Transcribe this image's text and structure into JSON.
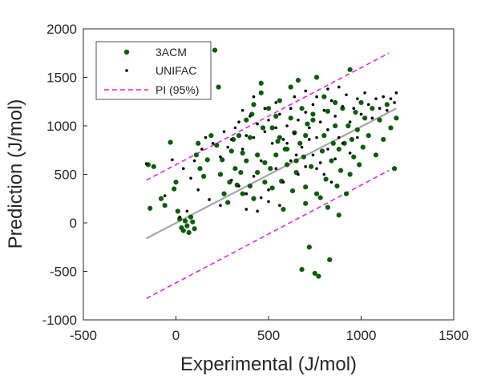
{
  "chart_data": {
    "type": "scatter",
    "title": "",
    "xlabel": "Experimental (J/mol)",
    "ylabel": "Prediction (J/mol)",
    "xlim": [
      -500,
      1500
    ],
    "ylim": [
      -1000,
      2000
    ],
    "xticks": [
      -500,
      0,
      500,
      1000,
      1500
    ],
    "yticks": [
      -1000,
      -500,
      0,
      500,
      1000,
      1500,
      2000
    ],
    "xtick_labels": [
      "-500",
      "0",
      "500",
      "1000",
      "1500"
    ],
    "ytick_labels": [
      "-1000",
      "-500",
      "0",
      "500",
      "1000",
      "1500",
      "2000"
    ],
    "grid": false,
    "legend_position": "top-left",
    "series": [
      {
        "name": "3ACM",
        "marker": "dot-large",
        "color": "#0a5c0a",
        "points": [
          [
            -150,
            600
          ],
          [
            -140,
            150
          ],
          [
            -120,
            580
          ],
          [
            -80,
            250
          ],
          [
            -60,
            180
          ],
          [
            -30,
            830
          ],
          [
            -10,
            350
          ],
          [
            0,
            420
          ],
          [
            10,
            120
          ],
          [
            20,
            40
          ],
          [
            30,
            -50
          ],
          [
            40,
            -80
          ],
          [
            50,
            20
          ],
          [
            60,
            -30
          ],
          [
            70,
            -100
          ],
          [
            80,
            60
          ],
          [
            90,
            10
          ],
          [
            100,
            -60
          ],
          [
            110,
            700
          ],
          [
            120,
            820
          ],
          [
            130,
            560
          ],
          [
            150,
            480
          ],
          [
            170,
            650
          ],
          [
            190,
            900
          ],
          [
            210,
            1780
          ],
          [
            220,
            800
          ],
          [
            230,
            1400
          ],
          [
            240,
            500
          ],
          [
            250,
            650
          ],
          [
            260,
            300
          ],
          [
            280,
            210
          ],
          [
            300,
            740
          ],
          [
            310,
            860
          ],
          [
            330,
            390
          ],
          [
            350,
            520
          ],
          [
            360,
            300
          ],
          [
            380,
            640
          ],
          [
            400,
            880
          ],
          [
            410,
            1120
          ],
          [
            420,
            250
          ],
          [
            440,
            700
          ],
          [
            460,
            1440
          ],
          [
            470,
            980
          ],
          [
            480,
            420
          ],
          [
            500,
            1180
          ],
          [
            510,
            560
          ],
          [
            520,
            360
          ],
          [
            540,
            700
          ],
          [
            550,
            840
          ],
          [
            560,
            1260
          ],
          [
            570,
            430
          ],
          [
            580,
            140
          ],
          [
            590,
            760
          ],
          [
            600,
            600
          ],
          [
            620,
            1080
          ],
          [
            630,
            330
          ],
          [
            640,
            930
          ],
          [
            650,
            520
          ],
          [
            660,
            1470
          ],
          [
            670,
            820
          ],
          [
            680,
            -480
          ],
          [
            690,
            680
          ],
          [
            700,
            370
          ],
          [
            710,
            1020
          ],
          [
            720,
            -250
          ],
          [
            730,
            580
          ],
          [
            740,
            1060
          ],
          [
            750,
            -520
          ],
          [
            760,
            1500
          ],
          [
            770,
            -550
          ],
          [
            780,
            260
          ],
          [
            790,
            740
          ],
          [
            800,
            900
          ],
          [
            810,
            450
          ],
          [
            820,
            1150
          ],
          [
            830,
            -380
          ],
          [
            840,
            640
          ],
          [
            850,
            820
          ],
          [
            860,
            1000
          ],
          [
            870,
            380
          ],
          [
            880,
            760
          ],
          [
            890,
            540
          ],
          [
            900,
            1180
          ],
          [
            910,
            820
          ],
          [
            920,
            300
          ],
          [
            930,
            1000
          ],
          [
            940,
            1580
          ],
          [
            950,
            860
          ],
          [
            960,
            680
          ],
          [
            970,
            1140
          ],
          [
            980,
            960
          ],
          [
            990,
            600
          ],
          [
            1000,
            1240
          ],
          [
            1010,
            780
          ],
          [
            1020,
            1080
          ],
          [
            1040,
            900
          ],
          [
            1060,
            1180
          ],
          [
            1080,
            700
          ],
          [
            1100,
            1060
          ],
          [
            1120,
            860
          ],
          [
            1140,
            1220
          ],
          [
            1160,
            980
          ],
          [
            1180,
            560
          ],
          [
            1190,
            1080
          ],
          [
            700,
            900
          ],
          [
            650,
            640
          ],
          [
            600,
            760
          ],
          [
            560,
            880
          ],
          [
            520,
            980
          ],
          [
            480,
            620
          ],
          [
            440,
            520
          ],
          [
            400,
            380
          ],
          [
            360,
            720
          ],
          [
            320,
            560
          ],
          [
            290,
            420
          ],
          [
            700,
            200
          ],
          [
            760,
            300
          ],
          [
            820,
            160
          ],
          [
            880,
            80
          ],
          [
            940,
            500
          ],
          [
            340,
            900
          ],
          [
            380,
            1060
          ],
          [
            420,
            1220
          ],
          [
            460,
            1340
          ],
          [
            540,
            1100
          ],
          [
            620,
            1400
          ],
          [
            680,
            1180
          ],
          [
            740,
            1120
          ],
          [
            800,
            1300
          ],
          [
            860,
            1240
          ]
        ]
      },
      {
        "name": "UNIFAC",
        "marker": "dot-small",
        "color": "#000000",
        "points": [
          [
            -160,
            610
          ],
          [
            -60,
            280
          ],
          [
            -20,
            650
          ],
          [
            40,
            560
          ],
          [
            80,
            460
          ],
          [
            100,
            640
          ],
          [
            140,
            760
          ],
          [
            160,
            880
          ],
          [
            200,
            820
          ],
          [
            240,
            680
          ],
          [
            260,
            940
          ],
          [
            280,
            780
          ],
          [
            300,
            860
          ],
          [
            320,
            980
          ],
          [
            340,
            1040
          ],
          [
            360,
            760
          ],
          [
            380,
            900
          ],
          [
            400,
            1100
          ],
          [
            420,
            880
          ],
          [
            440,
            1020
          ],
          [
            460,
            640
          ],
          [
            480,
            940
          ],
          [
            500,
            1060
          ],
          [
            520,
            820
          ],
          [
            540,
            980
          ],
          [
            560,
            1120
          ],
          [
            580,
            860
          ],
          [
            600,
            1000
          ],
          [
            620,
            1180
          ],
          [
            640,
            920
          ],
          [
            660,
            1060
          ],
          [
            680,
            780
          ],
          [
            700,
            1140
          ],
          [
            720,
            980
          ],
          [
            740,
            1220
          ],
          [
            760,
            880
          ],
          [
            780,
            1040
          ],
          [
            800,
            1160
          ],
          [
            820,
            960
          ],
          [
            840,
            1260
          ],
          [
            860,
            1100
          ],
          [
            880,
            880
          ],
          [
            900,
            1200
          ],
          [
            920,
            1320
          ],
          [
            940,
            1040
          ],
          [
            960,
            1180
          ],
          [
            980,
            1280
          ],
          [
            1000,
            1120
          ],
          [
            1020,
            1340
          ],
          [
            1040,
            1220
          ],
          [
            1060,
            1080
          ],
          [
            1080,
            1280
          ],
          [
            1100,
            1180
          ],
          [
            1120,
            1300
          ],
          [
            1140,
            1160
          ],
          [
            1160,
            1280
          ],
          [
            1180,
            1240
          ],
          [
            1190,
            1340
          ],
          [
            300,
            440
          ],
          [
            340,
            380
          ],
          [
            380,
            300
          ],
          [
            420,
            480
          ],
          [
            460,
            260
          ],
          [
            500,
            340
          ],
          [
            540,
            560
          ],
          [
            580,
            420
          ],
          [
            620,
            640
          ],
          [
            660,
            500
          ],
          [
            700,
            580
          ],
          [
            740,
            700
          ],
          [
            780,
            620
          ],
          [
            820,
            760
          ],
          [
            860,
            660
          ],
          [
            900,
            820
          ],
          [
            940,
            720
          ],
          [
            980,
            880
          ],
          [
            380,
            140
          ],
          [
            440,
            120
          ],
          [
            500,
            220
          ],
          [
            560,
            180
          ],
          [
            240,
            180
          ],
          [
            180,
            240
          ],
          [
            120,
            340
          ],
          [
            60,
            120
          ],
          [
            20,
            60
          ],
          [
            640,
            1300
          ],
          [
            700,
            1360
          ],
          [
            760,
            1300
          ],
          [
            820,
            1380
          ],
          [
            880,
            1400
          ],
          [
            540,
            1240
          ],
          [
            480,
            1180
          ],
          [
            420,
            1300
          ],
          [
            360,
            1160
          ],
          [
            600,
            820
          ],
          [
            650,
            700
          ],
          [
            720,
            860
          ],
          [
            760,
            560
          ],
          [
            800,
            500
          ],
          [
            840,
            420
          ]
        ]
      },
      {
        "name": "PI (95%)",
        "style": "dashed-line",
        "color": "#e01ee0",
        "lines": [
          [
            [
              -160,
              440
            ],
            [
              1150,
              1750
            ]
          ],
          [
            [
              -160,
              -780
            ],
            [
              1150,
              540
            ]
          ]
        ]
      },
      {
        "name": "",
        "style": "solid-line",
        "color": "#a6a6a6",
        "in_legend": false,
        "lines": [
          [
            [
              -160,
              -160
            ],
            [
              1190,
              1180
            ]
          ]
        ]
      }
    ]
  }
}
